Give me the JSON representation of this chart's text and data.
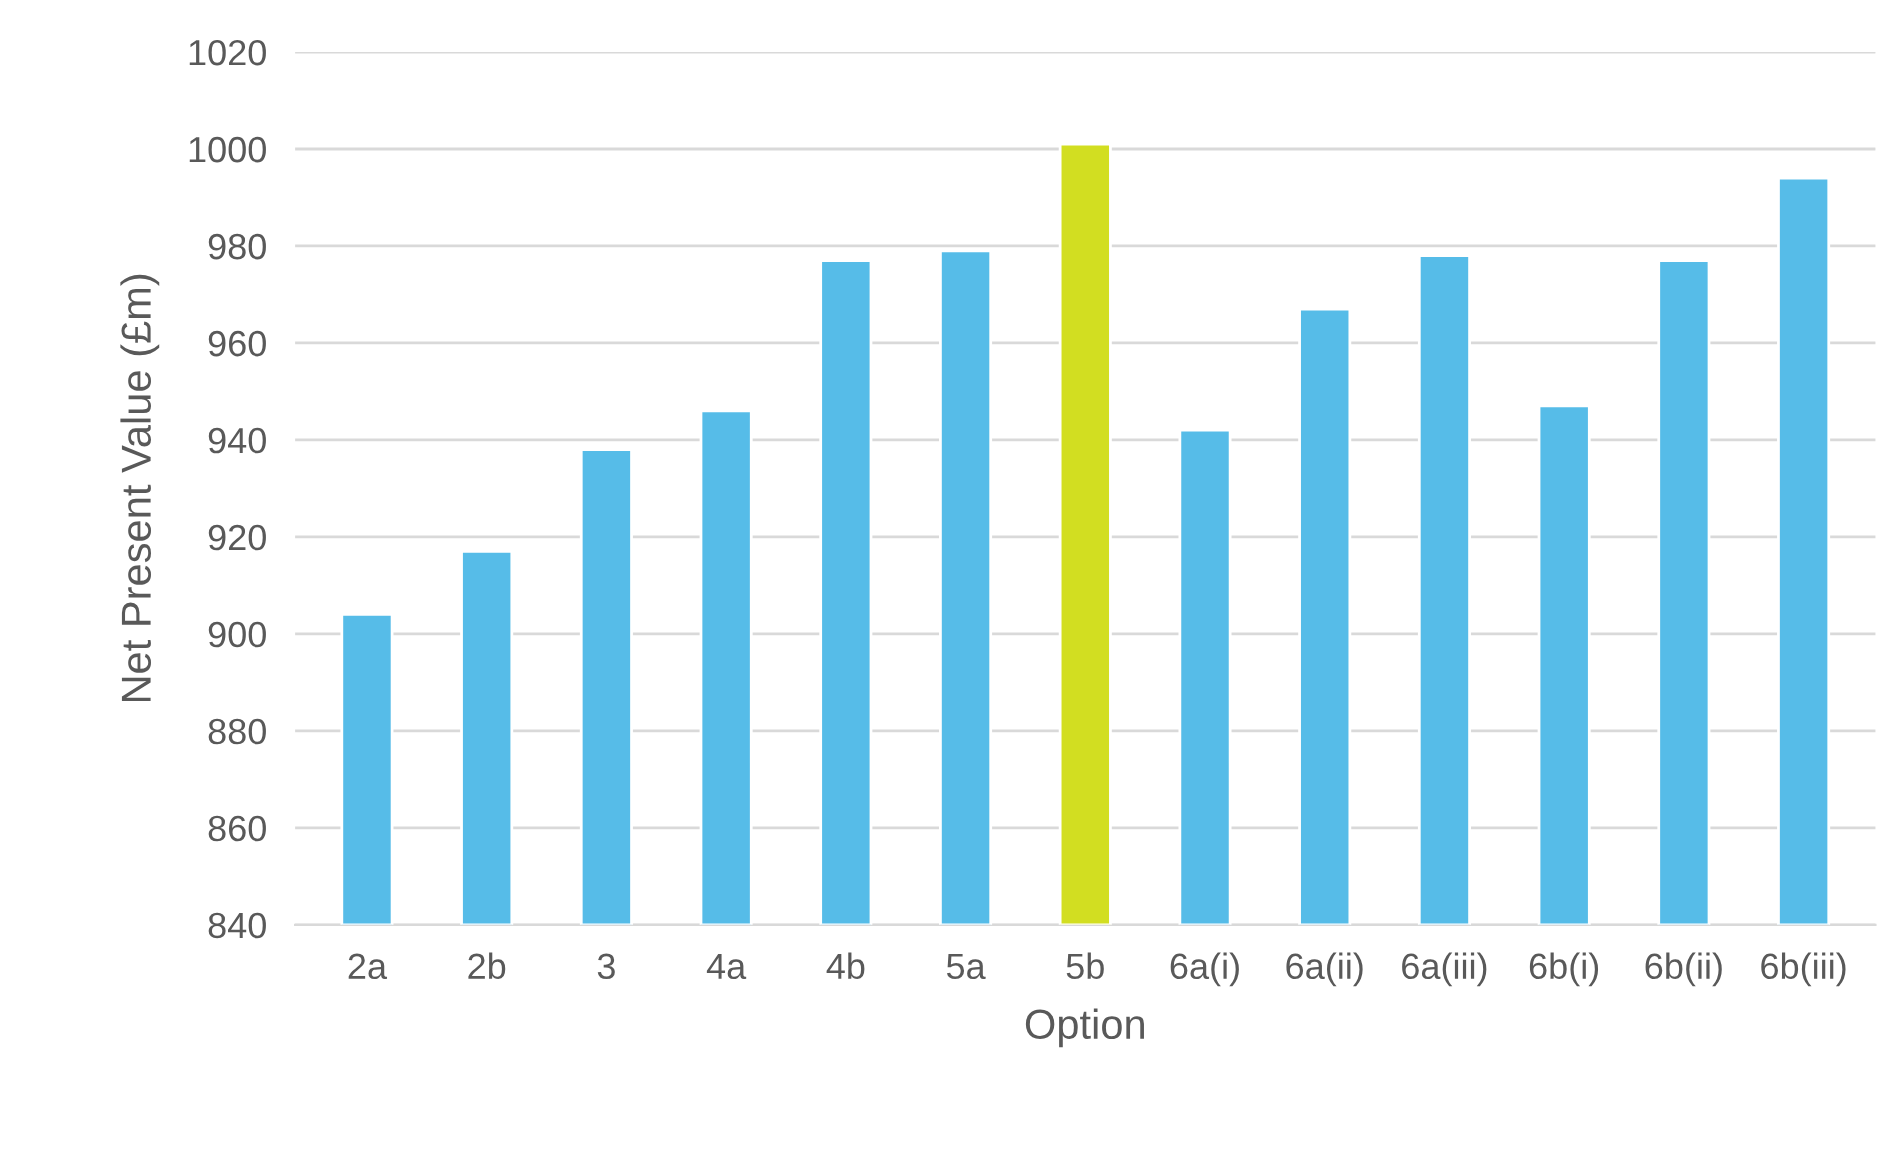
{
  "chart_data": {
    "type": "bar",
    "xlabel": "Option",
    "ylabel": "Net Present Value (£m)",
    "categories": [
      "2a",
      "2b",
      "3",
      "4a",
      "4b",
      "5a",
      "5b",
      "6a(i)",
      "6a(ii)",
      "6a(iii)",
      "6b(i)",
      "6b(ii)",
      "6b(iii)"
    ],
    "values": [
      904,
      917,
      938,
      946,
      977,
      979,
      1001,
      942,
      967,
      978,
      947,
      977,
      994
    ],
    "colors": [
      "#56bce8",
      "#56bce8",
      "#56bce8",
      "#56bce8",
      "#56bce8",
      "#56bce8",
      "#d2de21",
      "#56bce8",
      "#56bce8",
      "#56bce8",
      "#56bce8",
      "#56bce8",
      "#56bce8"
    ],
    "ylim": [
      840,
      1020
    ],
    "yticks": [
      840,
      860,
      880,
      900,
      920,
      940,
      960,
      980,
      1000,
      1020
    ],
    "grid": "y"
  }
}
